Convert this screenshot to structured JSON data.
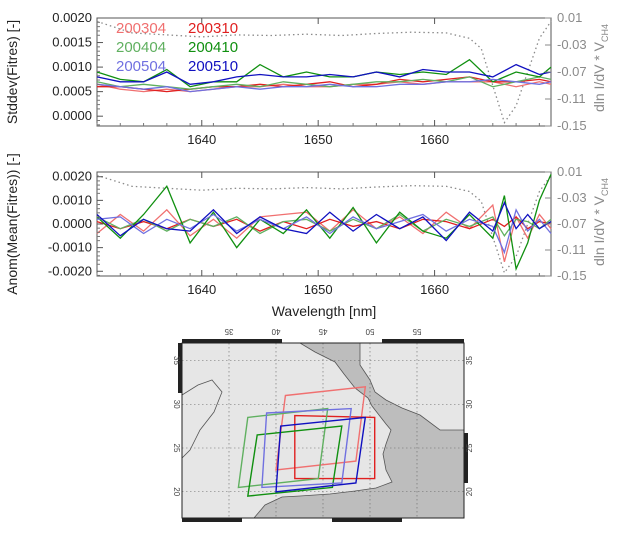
{
  "chart_data": [
    {
      "type": "line",
      "ylabel": "Stddev(Fitres) [-]",
      "right_ylabel_main": "dln I/dV * V",
      "right_ylabel_sub": "CH4",
      "xlim": [
        1631,
        1670
      ],
      "ylim": [
        -0.0002,
        0.002
      ],
      "right_ylim": [
        -0.15,
        0.01
      ],
      "xticks": [
        "1640",
        "1650",
        "1660"
      ],
      "yticks": [
        "0.0020",
        "0.0015",
        "0.0010",
        "0.0005",
        "0.0000"
      ],
      "right_yticks": [
        "0.01",
        "-0.03",
        "-0.07",
        "-0.11",
        "-0.15"
      ],
      "x": [
        1631,
        1633,
        1635,
        1637,
        1639,
        1641,
        1643,
        1645,
        1647,
        1649,
        1651,
        1653,
        1655,
        1657,
        1659,
        1661,
        1663,
        1665,
        1667,
        1669,
        1670
      ],
      "series": [
        {
          "name": "200304",
          "color": "#f07070",
          "values": [
            0.00065,
            0.00055,
            0.0005,
            0.00055,
            0.0005,
            0.00055,
            0.0006,
            0.0006,
            0.00065,
            0.0006,
            0.0006,
            0.00065,
            0.00065,
            0.0007,
            0.00065,
            0.0007,
            0.0007,
            0.0007,
            0.0006,
            0.0007,
            0.00065
          ]
        },
        {
          "name": "200310",
          "color": "#e02020",
          "values": [
            0.0006,
            0.0006,
            0.00055,
            0.0005,
            0.00055,
            0.0006,
            0.0006,
            0.00065,
            0.0006,
            0.00065,
            0.0007,
            0.0006,
            0.00065,
            0.00075,
            0.0007,
            0.00075,
            0.0008,
            0.0007,
            0.0007,
            0.00075,
            0.0007
          ]
        },
        {
          "name": "200404",
          "color": "#60b060",
          "values": [
            0.0007,
            0.0006,
            0.00065,
            0.0006,
            0.00055,
            0.0006,
            0.00065,
            0.0006,
            0.0007,
            0.00065,
            0.0006,
            0.00065,
            0.0007,
            0.0007,
            0.00075,
            0.0007,
            0.0008,
            0.0006,
            0.0007,
            0.0008,
            0.00075
          ]
        },
        {
          "name": "200410",
          "color": "#109010",
          "values": [
            0.0009,
            0.00075,
            0.0007,
            0.00095,
            0.0006,
            0.0007,
            0.0007,
            0.00105,
            0.0008,
            0.0009,
            0.0008,
            0.0008,
            0.0009,
            0.00085,
            0.0009,
            0.00085,
            0.00115,
            0.0007,
            0.0009,
            0.0008,
            0.001
          ]
        },
        {
          "name": "200504",
          "color": "#7070e0",
          "values": [
            0.00065,
            0.0006,
            0.00055,
            0.0006,
            0.0005,
            0.00055,
            0.0006,
            0.00055,
            0.0006,
            0.0006,
            0.00065,
            0.0006,
            0.0006,
            0.00065,
            0.00065,
            0.0007,
            0.0007,
            0.00075,
            0.0007,
            0.00065,
            0.0007
          ]
        },
        {
          "name": "200510",
          "color": "#1010c0",
          "values": [
            0.0008,
            0.0007,
            0.0007,
            0.0009,
            0.00065,
            0.0007,
            0.0008,
            0.00085,
            0.0008,
            0.0008,
            0.00085,
            0.0008,
            0.0009,
            0.0008,
            0.00095,
            0.0009,
            0.0009,
            0.0008,
            0.00105,
            0.00085,
            0.0009
          ]
        }
      ],
      "reference": {
        "name": "dln I/dV * V CH4",
        "style": "dotted",
        "color": "#8a8a8a",
        "x": [
          1631,
          1634,
          1637,
          1640,
          1643,
          1646,
          1649,
          1652,
          1655,
          1658,
          1661,
          1663,
          1664,
          1665,
          1666,
          1667,
          1668,
          1669,
          1670
        ],
        "values": [
          0.005,
          -0.012,
          -0.015,
          -0.018,
          -0.015,
          -0.016,
          -0.014,
          -0.016,
          -0.013,
          -0.011,
          -0.012,
          -0.02,
          -0.035,
          -0.09,
          -0.145,
          -0.12,
          -0.07,
          -0.02,
          0.005
        ]
      }
    },
    {
      "type": "line",
      "ylabel": "Anom(Mean(Fitres)) [-]",
      "xlabel": "Wavelength [nm]",
      "right_ylabel_main": "dln I/dV * V",
      "right_ylabel_sub": "CH4",
      "xlim": [
        1631,
        1670
      ],
      "ylim": [
        -0.0022,
        0.0022
      ],
      "right_ylim": [
        -0.15,
        0.01
      ],
      "xticks": [
        "1640",
        "1650",
        "1660"
      ],
      "yticks": [
        "0.0020",
        "0.0010",
        "0.0000",
        "-0.0010",
        "-0.0020"
      ],
      "right_yticks": [
        "0.01",
        "-0.03",
        "-0.07",
        "-0.11",
        "-0.15"
      ],
      "x": [
        1631,
        1633,
        1635,
        1637,
        1639,
        1641,
        1643,
        1645,
        1647,
        1649,
        1651,
        1653,
        1655,
        1657,
        1659,
        1661,
        1663,
        1665,
        1666,
        1667,
        1668,
        1669,
        1670
      ],
      "series": [
        {
          "name": "200304",
          "color": "#f07070",
          "values": [
            -0.0004,
            0.0004,
            -0.0003,
            0.0006,
            -0.0005,
            0.0002,
            -0.0006,
            0.0003,
            0.0004,
            0.0005,
            -0.0003,
            0.0006,
            -0.0002,
            0.0003,
            -0.0004,
            0.0005,
            -0.0002,
            0.0008,
            -0.0016,
            0.0003,
            -0.0006,
            0.0004,
            -0.0002
          ]
        },
        {
          "name": "200310",
          "color": "#e02020",
          "values": [
            0.0001,
            -0.0002,
            0.0001,
            -0.0002,
            0.0002,
            -0.0001,
            0.0002,
            -0.0003,
            0.0001,
            -0.0002,
            0.0002,
            -0.0001,
            0.0001,
            -0.0002,
            0.0002,
            0.0001,
            -0.0002,
            0.0002,
            -0.0001,
            0.0003,
            -0.0002,
            0.0001,
            0.0
          ]
        },
        {
          "name": "200404",
          "color": "#60b060",
          "values": [
            0.0003,
            -0.0002,
            0.0002,
            -0.0003,
            0.0002,
            -0.0001,
            0.0003,
            -0.0004,
            0.0001,
            0.0002,
            -0.0003,
            0.0002,
            -0.0002,
            0.0004,
            -0.0003,
            0.0002,
            -0.0001,
            0.0003,
            -0.0005,
            0.0002,
            0.0001,
            -0.0002,
            0.0002
          ]
        },
        {
          "name": "200410",
          "color": "#109010",
          "values": [
            0.0003,
            -0.0006,
            0.0004,
            0.0016,
            -0.0008,
            0.0005,
            -0.001,
            0.0002,
            -0.0004,
            0.0006,
            -0.0006,
            0.0007,
            -0.0008,
            0.0005,
            -0.0003,
            -0.0006,
            0.0004,
            -0.0006,
            0.0012,
            -0.0019,
            -0.0008,
            0.001,
            0.0021
          ]
        },
        {
          "name": "200504",
          "color": "#7070e0",
          "values": [
            0.0002,
            0.0003,
            -0.0004,
            0.0002,
            -0.0002,
            0.0004,
            -0.0003,
            0.0002,
            -0.0002,
            0.0003,
            -0.0004,
            0.0003,
            -0.0002,
            0.0001,
            0.0004,
            -0.0003,
            0.0002,
            -0.0001,
            -0.0012,
            0.0006,
            -0.0003,
            0.0002,
            -0.0004
          ]
        },
        {
          "name": "200510",
          "color": "#1010c0",
          "values": [
            0.0004,
            -0.0005,
            0.0002,
            -0.0002,
            -0.0003,
            0.0006,
            -0.0004,
            0.0003,
            -0.0002,
            -0.0004,
            0.0005,
            -0.0003,
            0.0004,
            -0.0002,
            0.0003,
            -0.0007,
            0.0005,
            -0.0003,
            0.0009,
            -0.0002,
            0.0004,
            -0.0002,
            0.0001
          ]
        }
      ],
      "reference": {
        "name": "dln I/dV * V CH4",
        "style": "dotted",
        "color": "#8a8a8a",
        "x": [
          1631,
          1634,
          1637,
          1640,
          1643,
          1646,
          1649,
          1652,
          1655,
          1658,
          1661,
          1663,
          1664,
          1665,
          1666,
          1667,
          1668,
          1669,
          1670
        ],
        "values": [
          0.005,
          -0.012,
          -0.015,
          -0.018,
          -0.015,
          -0.016,
          -0.014,
          -0.016,
          -0.013,
          -0.011,
          -0.012,
          -0.02,
          -0.035,
          -0.09,
          -0.145,
          -0.12,
          -0.07,
          -0.02,
          0.005
        ]
      }
    },
    {
      "type": "map",
      "top_ticks": [
        "35",
        "40",
        "45",
        "50",
        "55"
      ],
      "left_ticks": [
        "35",
        "30",
        "25",
        "20"
      ],
      "right_ticks": [
        "35",
        "30",
        "25",
        "20"
      ],
      "lon_range": [
        30,
        60
      ],
      "lat_range": [
        17,
        37
      ],
      "land_color": "#e6e6e6",
      "sea_color": "#bdbdbd",
      "footprints": [
        {
          "name": "200304",
          "color": "#f07070",
          "corners": [
            [
              41,
              31
            ],
            [
              49.5,
              32
            ],
            [
              48.5,
              23.5
            ],
            [
              40,
              22.5
            ]
          ]
        },
        {
          "name": "200310",
          "color": "#e02020",
          "corners": [
            [
              42,
              28.7
            ],
            [
              50.5,
              28.5
            ],
            [
              50.5,
              21.5
            ],
            [
              42,
              21.5
            ]
          ]
        },
        {
          "name": "200404",
          "color": "#60b060",
          "corners": [
            [
              37,
              28.5
            ],
            [
              45.5,
              29.5
            ],
            [
              44.5,
              21.5
            ],
            [
              36,
              20.5
            ]
          ]
        },
        {
          "name": "200410",
          "color": "#109010",
          "corners": [
            [
              38,
              26.5
            ],
            [
              47,
              27.5
            ],
            [
              46,
              20.5
            ],
            [
              37,
              19.5
            ]
          ]
        },
        {
          "name": "200504",
          "color": "#7070e0",
          "corners": [
            [
              39,
              29
            ],
            [
              48,
              29.5
            ],
            [
              47,
              21
            ],
            [
              38.5,
              20.5
            ]
          ]
        },
        {
          "name": "200510",
          "color": "#1010c0",
          "corners": [
            [
              40.5,
              27.5
            ],
            [
              49.5,
              28.5
            ],
            [
              48.5,
              21
            ],
            [
              40,
              20
            ]
          ]
        }
      ]
    }
  ]
}
